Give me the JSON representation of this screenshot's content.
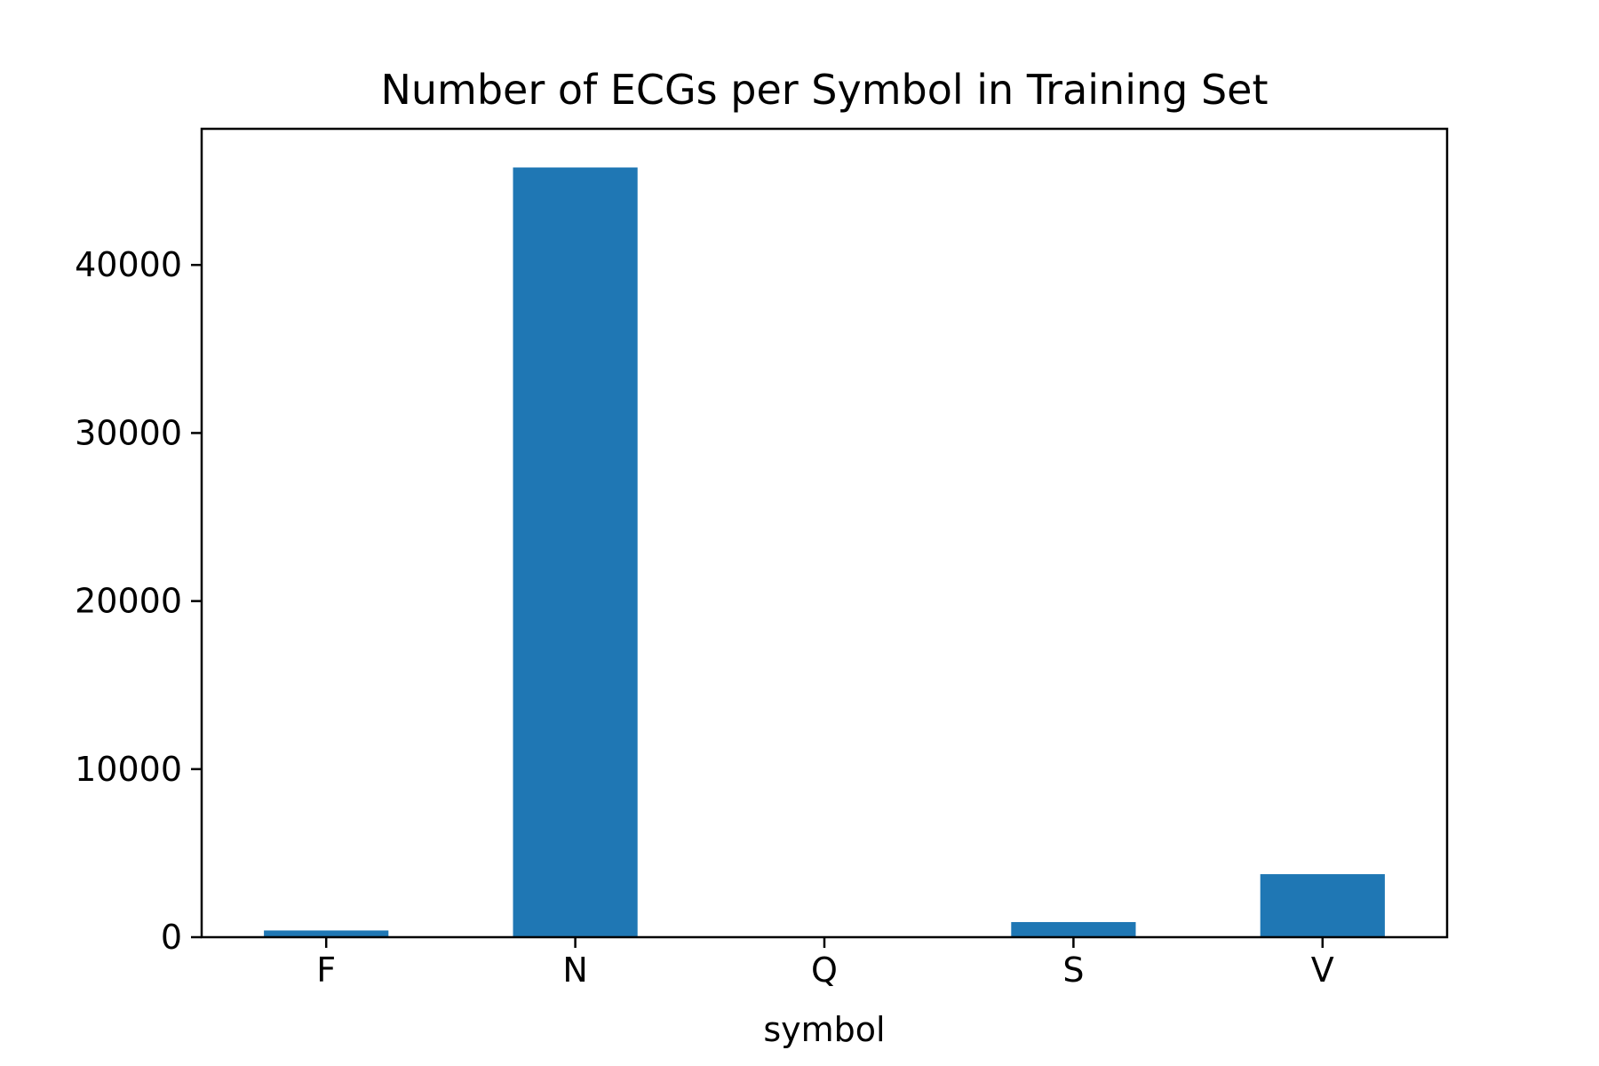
{
  "chart_data": {
    "type": "bar",
    "title": "Number of ECGs per Symbol in Training Set",
    "xlabel": "symbol",
    "ylabel": "",
    "categories": [
      "F",
      "N",
      "Q",
      "S",
      "V"
    ],
    "values": [
      400,
      45800,
      10,
      900,
      3750
    ],
    "ylim": [
      0,
      48100
    ],
    "yticks": [
      0,
      10000,
      20000,
      30000,
      40000
    ],
    "grid": false,
    "legend": "none",
    "bar_color": "#1f77b4"
  }
}
